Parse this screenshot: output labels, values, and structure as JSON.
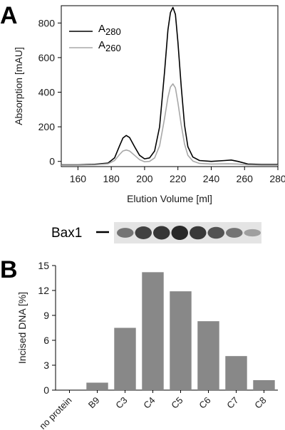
{
  "chart_data": [
    {
      "panel": "A",
      "type": "line",
      "xlabel": "Elution Volume [ml]",
      "ylabel": "Absorption [mAU]",
      "xlim": [
        150,
        280
      ],
      "ylim": [
        -30,
        900
      ],
      "xticks": [
        160,
        180,
        200,
        220,
        240,
        260,
        280
      ],
      "yticks": [
        0,
        200,
        400,
        600,
        800
      ],
      "legend_position": "top-left",
      "series": [
        {
          "name_main": "A",
          "name_sub": "280",
          "color": "#000000",
          "points": [
            [
              150,
              -20
            ],
            [
              160,
              -20
            ],
            [
              170,
              -17
            ],
            [
              178,
              -10
            ],
            [
              182,
              20
            ],
            [
              185,
              90
            ],
            [
              187,
              135
            ],
            [
              189,
              150
            ],
            [
              191,
              138
            ],
            [
              194,
              85
            ],
            [
              197,
              35
            ],
            [
              200,
              15
            ],
            [
              203,
              20
            ],
            [
              206,
              60
            ],
            [
              209,
              200
            ],
            [
              212,
              520
            ],
            [
              214,
              760
            ],
            [
              215.5,
              860
            ],
            [
              217,
              890
            ],
            [
              218.5,
              850
            ],
            [
              220,
              690
            ],
            [
              222,
              430
            ],
            [
              224,
              210
            ],
            [
              226,
              85
            ],
            [
              229,
              25
            ],
            [
              233,
              5
            ],
            [
              240,
              0
            ],
            [
              248,
              5
            ],
            [
              252,
              8
            ],
            [
              256,
              0
            ],
            [
              262,
              -15
            ],
            [
              270,
              -18
            ],
            [
              280,
              -18
            ]
          ]
        },
        {
          "name_main": "A",
          "name_sub": "260",
          "color": "#a8a8a8",
          "points": [
            [
              150,
              -22
            ],
            [
              160,
              -22
            ],
            [
              170,
              -20
            ],
            [
              178,
              -14
            ],
            [
              182,
              5
            ],
            [
              185,
              40
            ],
            [
              187,
              60
            ],
            [
              189,
              66
            ],
            [
              191,
              60
            ],
            [
              194,
              35
            ],
            [
              197,
              10
            ],
            [
              200,
              -2
            ],
            [
              203,
              0
            ],
            [
              206,
              20
            ],
            [
              209,
              90
            ],
            [
              212,
              250
            ],
            [
              214,
              370
            ],
            [
              215.5,
              430
            ],
            [
              217,
              448
            ],
            [
              218.5,
              425
            ],
            [
              220,
              340
            ],
            [
              222,
              210
            ],
            [
              224,
              100
            ],
            [
              226,
              35
            ],
            [
              229,
              2
            ],
            [
              233,
              -12
            ],
            [
              240,
              -15
            ],
            [
              250,
              -14
            ],
            [
              256,
              -15
            ],
            [
              262,
              -20
            ],
            [
              270,
              -22
            ],
            [
              280,
              -22
            ]
          ]
        }
      ]
    },
    {
      "panel": "B",
      "type": "bar",
      "ylabel": "Incised DNA [%]",
      "ylim": [
        0,
        15
      ],
      "yticks": [
        0,
        3,
        6,
        9,
        12,
        15
      ],
      "categories": [
        "no protein",
        "B9",
        "C3",
        "C4",
        "C5",
        "C6",
        "C7",
        "C8"
      ],
      "values": [
        0,
        0.9,
        7.5,
        14.2,
        11.9,
        8.3,
        4.1,
        1.2
      ],
      "bar_color": "#888888"
    }
  ],
  "panel_labels": {
    "a": "A",
    "b": "B"
  },
  "gel": {
    "label": "Bax1",
    "band_intensity": [
      0.55,
      0.85,
      0.92,
      1.0,
      0.9,
      0.75,
      0.55,
      0.3
    ]
  }
}
